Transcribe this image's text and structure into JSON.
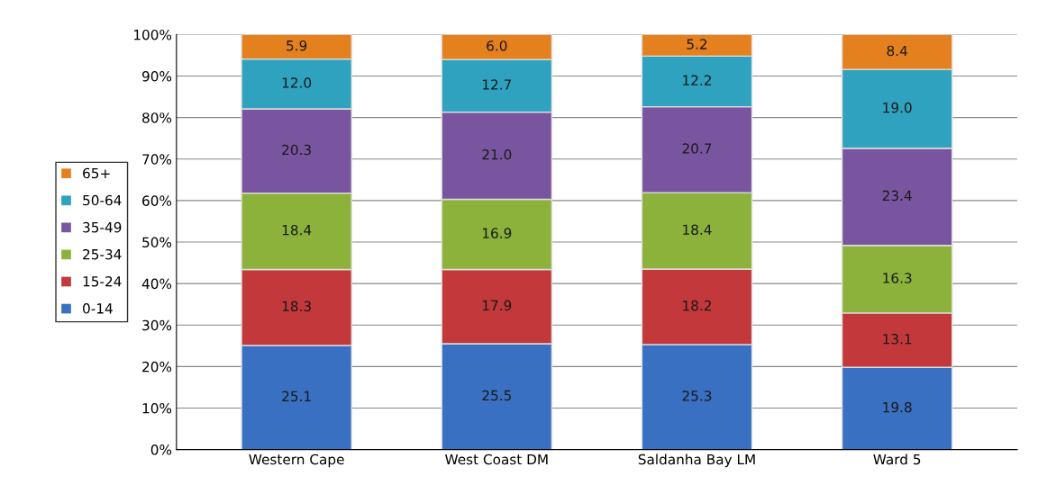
{
  "chart_data": {
    "type": "bar",
    "stacked": true,
    "categories": [
      "Western Cape",
      "West Coast DM",
      "Saldanha Bay LM",
      "Ward 5"
    ],
    "series": [
      {
        "name": "0-14",
        "color": "#3a70c2",
        "values": [
          25.1,
          25.5,
          25.3,
          19.8
        ],
        "value_labels": [
          "25.1",
          "25.5",
          "25.3",
          "19.8"
        ]
      },
      {
        "name": "15-24",
        "color": "#c3383a",
        "values": [
          18.3,
          17.9,
          18.2,
          13.1
        ],
        "value_labels": [
          "18.3",
          "17.9",
          "18.2",
          "13.1"
        ]
      },
      {
        "name": "25-34",
        "color": "#8cb23c",
        "values": [
          18.4,
          16.9,
          18.4,
          16.3
        ],
        "value_labels": [
          "18.4",
          "16.9",
          "18.4",
          "16.3"
        ]
      },
      {
        "name": "35-49",
        "color": "#7a559f",
        "values": [
          20.3,
          21.0,
          20.7,
          23.4
        ],
        "value_labels": [
          "20.3",
          "21.0",
          "20.7",
          "23.4"
        ]
      },
      {
        "name": "50-64",
        "color": "#2ea2bf",
        "values": [
          12.0,
          12.7,
          12.2,
          19.0
        ],
        "value_labels": [
          "12.0",
          "12.7",
          "12.2",
          "19.0"
        ]
      },
      {
        "name": "65+",
        "color": "#e5801f",
        "values": [
          5.9,
          6.0,
          5.2,
          8.4
        ],
        "value_labels": [
          "5.9",
          "6.0",
          "5.2",
          "8.4"
        ]
      }
    ],
    "ylim": [
      0,
      100
    ],
    "yticks": [
      {
        "value": 0,
        "label": "0%"
      },
      {
        "value": 10,
        "label": "10%"
      },
      {
        "value": 20,
        "label": "20%"
      },
      {
        "value": 30,
        "label": "30%"
      },
      {
        "value": 40,
        "label": "40%"
      },
      {
        "value": 50,
        "label": "50%"
      },
      {
        "value": 60,
        "label": "60%"
      },
      {
        "value": 70,
        "label": "70%"
      },
      {
        "value": 80,
        "label": "80%"
      },
      {
        "value": 90,
        "label": "90%"
      },
      {
        "value": 100,
        "label": "100%"
      }
    ],
    "grid": "y",
    "legend": "left"
  }
}
